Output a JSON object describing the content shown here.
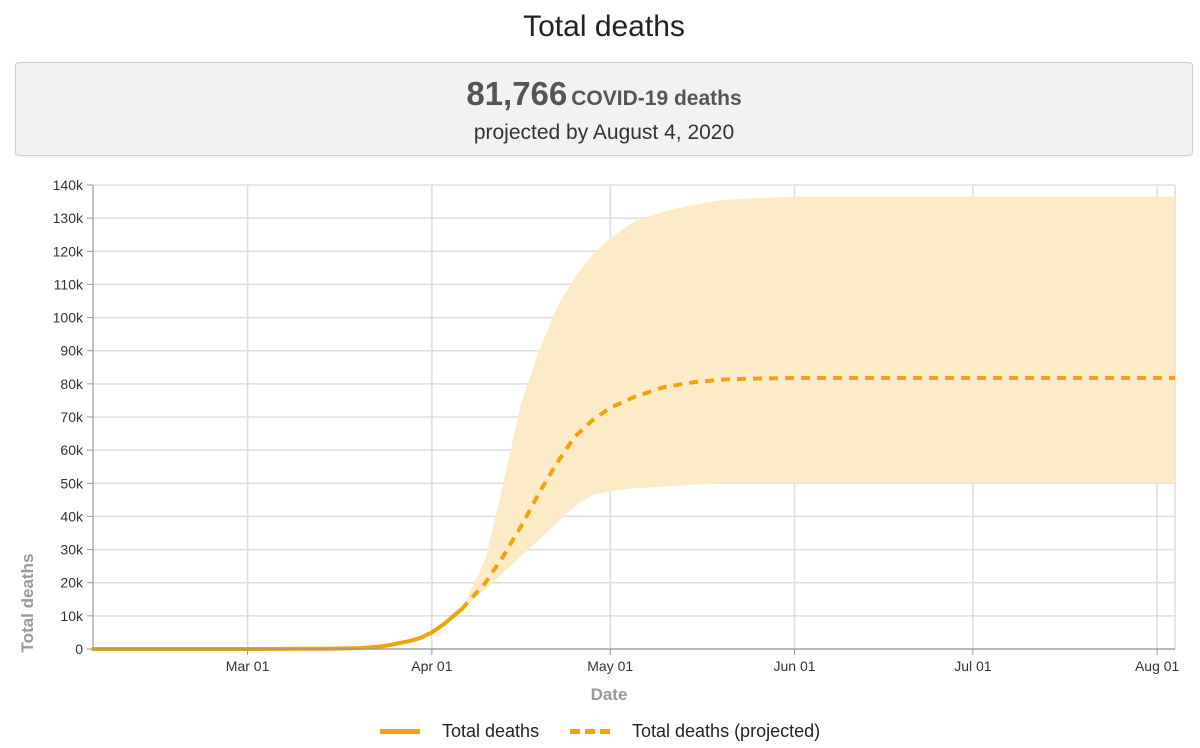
{
  "page": {
    "title": "Total deaths",
    "summary": {
      "number": "81,766",
      "unit": "COVID-19 deaths",
      "subtitle": "projected by August 4, 2020"
    }
  },
  "colors": {
    "line": "#f0a30a",
    "band": "#fdebc8",
    "grid": "#dddddd",
    "axis": "#999999",
    "axis_title": "#999999"
  },
  "chart_data": {
    "type": "line",
    "title": "",
    "xlabel": "Date",
    "ylabel": "Total deaths",
    "x_ticks": [
      "Mar 01",
      "Apr 01",
      "May 01",
      "Jun 01",
      "Jul 01",
      "Aug 01"
    ],
    "y_ticks": [
      "0",
      "10k",
      "20k",
      "30k",
      "40k",
      "50k",
      "60k",
      "70k",
      "80k",
      "90k",
      "100k",
      "110k",
      "120k",
      "130k",
      "140k"
    ],
    "x_range": [
      "2020-02-04",
      "2020-08-04"
    ],
    "ylim": [
      0,
      140000
    ],
    "grid": true,
    "legend_position": "bottom",
    "legend": [
      "Total deaths",
      "Total deaths (projected)"
    ],
    "series": [
      {
        "name": "Total deaths",
        "style": "solid",
        "points": [
          [
            "2020-02-04",
            0
          ],
          [
            "2020-03-01",
            0
          ],
          [
            "2020-03-10",
            50
          ],
          [
            "2020-03-15",
            100
          ],
          [
            "2020-03-20",
            300
          ],
          [
            "2020-03-22",
            500
          ],
          [
            "2020-03-24",
            900
          ],
          [
            "2020-03-26",
            1600
          ],
          [
            "2020-03-28",
            2300
          ],
          [
            "2020-03-30",
            3300
          ],
          [
            "2020-04-01",
            5000
          ],
          [
            "2020-04-03",
            7500
          ],
          [
            "2020-04-05",
            10500
          ],
          [
            "2020-04-06",
            12000
          ]
        ]
      },
      {
        "name": "Total deaths (projected)",
        "style": "dashed",
        "points": [
          [
            "2020-04-06",
            12000
          ],
          [
            "2020-04-10",
            20000
          ],
          [
            "2020-04-13",
            28000
          ],
          [
            "2020-04-16",
            37000
          ],
          [
            "2020-04-19",
            47000
          ],
          [
            "2020-04-22",
            56000
          ],
          [
            "2020-04-25",
            64000
          ],
          [
            "2020-04-28",
            69000
          ],
          [
            "2020-05-01",
            72800
          ],
          [
            "2020-05-05",
            76000
          ],
          [
            "2020-05-10",
            79000
          ],
          [
            "2020-05-15",
            80500
          ],
          [
            "2020-05-20",
            81300
          ],
          [
            "2020-05-25",
            81600
          ],
          [
            "2020-06-01",
            81766
          ],
          [
            "2020-07-01",
            81766
          ],
          [
            "2020-08-04",
            81766
          ]
        ]
      }
    ],
    "uncertainty_band": {
      "x": [
        "2020-04-06",
        "2020-04-10",
        "2020-04-13",
        "2020-04-16",
        "2020-04-19",
        "2020-04-22",
        "2020-04-25",
        "2020-04-28",
        "2020-05-01",
        "2020-05-05",
        "2020-05-10",
        "2020-05-15",
        "2020-05-20",
        "2020-05-25",
        "2020-06-01",
        "2020-07-01",
        "2020-08-04"
      ],
      "lower": [
        12000,
        18000,
        23000,
        28000,
        33000,
        38000,
        43000,
        46500,
        47500,
        48500,
        49000,
        49500,
        50000,
        50000,
        50000,
        50000,
        50000
      ],
      "upper": [
        12000,
        27000,
        50000,
        74000,
        90000,
        103000,
        112000,
        119000,
        124000,
        129000,
        132000,
        134000,
        135500,
        136000,
        136500,
        136500,
        136500
      ]
    }
  }
}
